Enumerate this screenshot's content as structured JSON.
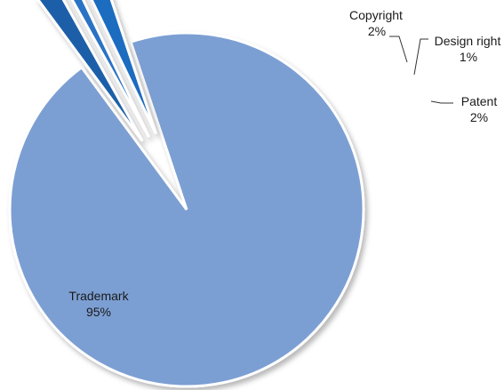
{
  "chart_data": {
    "type": "pie",
    "slices": [
      {
        "label": "Trademark",
        "value": 95,
        "value_label": "95%",
        "color": "#7b9fd3"
      },
      {
        "label": "Copyright",
        "value": 2,
        "value_label": "2%",
        "color": "#1f5fa8"
      },
      {
        "label": "Design right",
        "value": 1,
        "value_label": "1%",
        "color": "#2a72c4"
      },
      {
        "label": "Patent",
        "value": 2,
        "value_label": "2%",
        "color": "#1f6cc0"
      }
    ],
    "exploded": [
      "Copyright",
      "Design right",
      "Patent"
    ],
    "legend": "none"
  }
}
